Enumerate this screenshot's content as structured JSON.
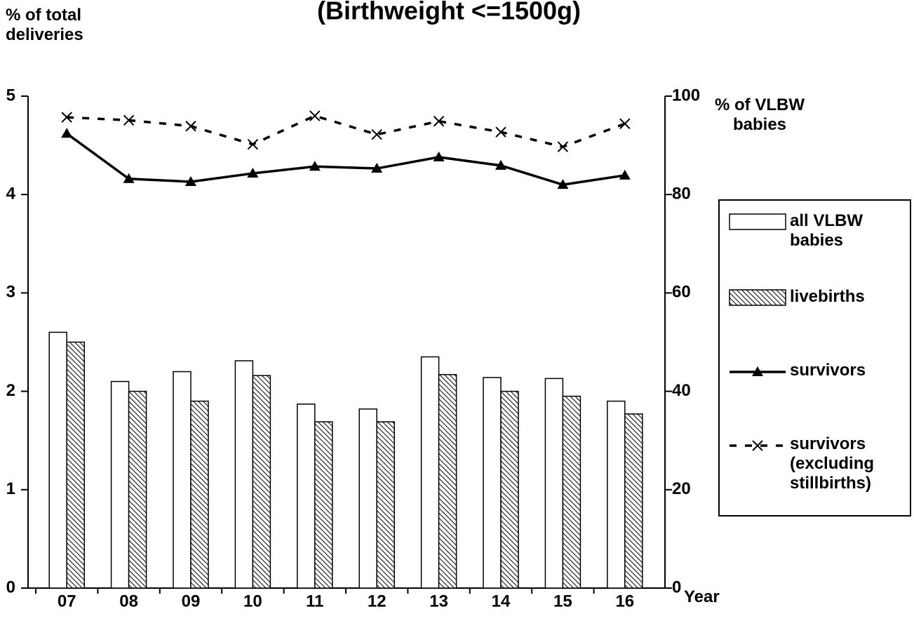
{
  "chart_data": {
    "type": "bar",
    "title": "(Birthweight <=1500g)",
    "y_label": "% of total deliveries",
    "y2_label": "% of VLBW babies",
    "x_label": "Year",
    "categories": [
      "07",
      "08",
      "09",
      "10",
      "11",
      "12",
      "13",
      "14",
      "15",
      "16"
    ],
    "series": [
      {
        "name": "all VLBW babies",
        "type": "bar",
        "color": "#ffffff",
        "values": [
          2.6,
          2.1,
          2.2,
          2.31,
          1.87,
          1.82,
          2.35,
          2.14,
          2.13,
          1.9
        ]
      },
      {
        "name": "livebirths",
        "type": "bar",
        "color": "hatch",
        "values": [
          2.5,
          2.0,
          1.9,
          2.16,
          1.69,
          1.69,
          2.17,
          2.0,
          1.95,
          1.77
        ]
      },
      {
        "name": "survivors",
        "type": "line",
        "axis": "y2",
        "color": "#000000",
        "values": [
          92.4,
          83.2,
          82.6,
          84.3,
          85.7,
          85.3,
          87.6,
          85.9,
          82.0,
          83.9
        ]
      },
      {
        "name": "survivors (excluding stillbirths)",
        "type": "line",
        "dashed": true,
        "axis": "y2",
        "color": "#000000",
        "values": [
          95.7,
          95.1,
          93.9,
          90.2,
          96.0,
          92.2,
          94.9,
          92.7,
          89.7,
          94.4
        ]
      }
    ],
    "ylim": [
      0,
      5
    ],
    "yticks": [
      0,
      1,
      2,
      3,
      4,
      5
    ],
    "y2lim": [
      0,
      100
    ],
    "y2ticks": [
      0,
      20,
      40,
      60,
      80,
      100
    ],
    "legend": "right"
  }
}
